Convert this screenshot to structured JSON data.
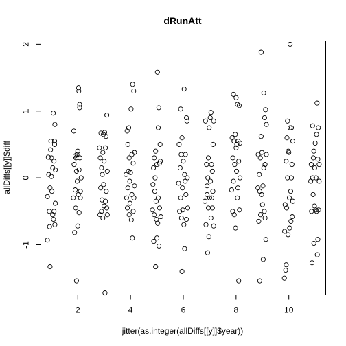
{
  "chart_data": {
    "type": "scatter",
    "title": "dRunAtt",
    "xlabel": "jitter(as.integer(allDiffs[[y]]$year))",
    "ylabel": "allDiffs[[y]]$diff",
    "xlim": [
      0.6,
      11.4
    ],
    "ylim": [
      -1.75,
      2.05
    ],
    "xticks": [
      2,
      4,
      6,
      8,
      10
    ],
    "yticks": [
      -1,
      0,
      1,
      2
    ],
    "grid": false,
    "legend": "none",
    "marker": "open-circle",
    "points": [
      [
        0.85,
        -0.93
      ],
      [
        0.85,
        -0.28
      ],
      [
        0.88,
        0.31
      ],
      [
        0.9,
        0.05
      ],
      [
        0.92,
        -0.5
      ],
      [
        0.93,
        -0.73
      ],
      [
        0.95,
        -1.33
      ],
      [
        0.95,
        -0.15
      ],
      [
        0.97,
        0.42
      ],
      [
        0.98,
        0.55
      ],
      [
        1.0,
        0.3
      ],
      [
        1.0,
        0.02
      ],
      [
        1.02,
        -0.2
      ],
      [
        1.05,
        0.15
      ],
      [
        1.05,
        -0.55
      ],
      [
        1.07,
        0.97
      ],
      [
        1.08,
        -0.62
      ],
      [
        1.1,
        0.25
      ],
      [
        1.1,
        -0.5
      ],
      [
        1.12,
        0.55
      ],
      [
        1.13,
        0.8
      ],
      [
        1.13,
        -0.7
      ],
      [
        1.15,
        0.12
      ],
      [
        1.15,
        -0.38
      ],
      [
        1.12,
        0.5
      ],
      [
        1.83,
        -0.3
      ],
      [
        1.85,
        0.7
      ],
      [
        1.86,
        0.2
      ],
      [
        1.88,
        -0.82
      ],
      [
        1.9,
        0.33
      ],
      [
        1.9,
        -0.18
      ],
      [
        1.92,
        -0.45
      ],
      [
        1.93,
        0.3
      ],
      [
        1.95,
        -1.54
      ],
      [
        1.95,
        0.1
      ],
      [
        1.97,
        0.35
      ],
      [
        1.98,
        -0.05
      ],
      [
        2.0,
        0.4
      ],
      [
        2.0,
        -0.72
      ],
      [
        2.02,
        -0.25
      ],
      [
        2.03,
        1.35
      ],
      [
        2.04,
        1.3
      ],
      [
        2.05,
        0.12
      ],
      [
        2.05,
        -0.52
      ],
      [
        2.07,
        1.1
      ],
      [
        2.07,
        1.05
      ],
      [
        2.08,
        0.3
      ],
      [
        2.1,
        -0.3
      ],
      [
        2.1,
        -0.2
      ],
      [
        2.13,
        0.0
      ],
      [
        2.82,
        0.45
      ],
      [
        2.84,
        -0.55
      ],
      [
        2.85,
        0.3
      ],
      [
        2.87,
        -0.15
      ],
      [
        2.88,
        0.67
      ],
      [
        2.9,
        0.15
      ],
      [
        2.9,
        -0.5
      ],
      [
        2.92,
        -0.33
      ],
      [
        2.93,
        0.05
      ],
      [
        2.95,
        0.38
      ],
      [
        2.95,
        -0.6
      ],
      [
        2.97,
        0.65
      ],
      [
        2.98,
        -0.1
      ],
      [
        3.0,
        0.25
      ],
      [
        3.0,
        -0.42
      ],
      [
        3.02,
        0.68
      ],
      [
        3.03,
        -1.72
      ],
      [
        3.05,
        0.45
      ],
      [
        3.05,
        -0.35
      ],
      [
        3.07,
        0.62
      ],
      [
        3.08,
        -0.2
      ],
      [
        3.1,
        0.94
      ],
      [
        3.1,
        -0.45
      ],
      [
        3.12,
        0.1
      ],
      [
        3.12,
        -0.55
      ],
      [
        3.83,
        0.05
      ],
      [
        3.85,
        -0.3
      ],
      [
        3.87,
        0.7
      ],
      [
        3.88,
        -0.45
      ],
      [
        3.9,
        0.5
      ],
      [
        3.9,
        -0.15
      ],
      [
        3.92,
        0.1
      ],
      [
        3.93,
        0.75
      ],
      [
        3.95,
        -0.55
      ],
      [
        3.95,
        0.3
      ],
      [
        3.97,
        -0.05
      ],
      [
        3.98,
        -0.38
      ],
      [
        4.0,
        0.08
      ],
      [
        4.02,
        1.03
      ],
      [
        4.03,
        -0.63
      ],
      [
        4.05,
        -0.25
      ],
      [
        4.05,
        0.35
      ],
      [
        4.07,
        -0.9
      ],
      [
        4.08,
        1.4
      ],
      [
        4.1,
        -0.5
      ],
      [
        4.1,
        0.22
      ],
      [
        4.12,
        1.3
      ],
      [
        4.13,
        -0.3
      ],
      [
        4.15,
        0.38
      ],
      [
        4.15,
        -0.12
      ],
      [
        4.83,
        -0.48
      ],
      [
        4.85,
        -0.1
      ],
      [
        4.87,
        0.15
      ],
      [
        4.88,
        -0.95
      ],
      [
        4.9,
        0.3
      ],
      [
        4.9,
        -0.55
      ],
      [
        4.92,
        -0.2
      ],
      [
        4.93,
        0.0
      ],
      [
        4.95,
        -1.33
      ],
      [
        4.95,
        0.4
      ],
      [
        4.97,
        -0.35
      ],
      [
        4.98,
        -0.62
      ],
      [
        5.0,
        -0.9
      ],
      [
        5.0,
        0.2
      ],
      [
        5.02,
        1.58
      ],
      [
        5.03,
        -0.68
      ],
      [
        5.05,
        0.75
      ],
      [
        5.05,
        -0.3
      ],
      [
        5.07,
        1.05
      ],
      [
        5.08,
        -1.02
      ],
      [
        5.1,
        0.22
      ],
      [
        5.1,
        -0.45
      ],
      [
        5.12,
        0.5
      ],
      [
        5.13,
        0.25
      ],
      [
        5.15,
        -0.58
      ],
      [
        5.82,
        -0.08
      ],
      [
        5.84,
        0.5
      ],
      [
        5.86,
        -0.5
      ],
      [
        5.88,
        0.15
      ],
      [
        5.9,
        1.03
      ],
      [
        5.9,
        -0.3
      ],
      [
        5.92,
        0.35
      ],
      [
        5.93,
        -0.6
      ],
      [
        5.95,
        -1.4
      ],
      [
        5.95,
        0.6
      ],
      [
        5.97,
        -0.15
      ],
      [
        5.98,
        -0.48
      ],
      [
        6.0,
        0.25
      ],
      [
        6.02,
        -0.7
      ],
      [
        6.03,
        1.33
      ],
      [
        6.05,
        -1.06
      ],
      [
        6.05,
        0.05
      ],
      [
        6.07,
        -0.05
      ],
      [
        6.08,
        0.35
      ],
      [
        6.1,
        -0.25
      ],
      [
        6.12,
        0.9
      ],
      [
        6.12,
        -0.62
      ],
      [
        6.14,
        0.85
      ],
      [
        6.15,
        0.0
      ],
      [
        6.17,
        -0.45
      ],
      [
        6.82,
        -0.35
      ],
      [
        6.84,
        0.85
      ],
      [
        6.86,
        -0.7
      ],
      [
        6.88,
        0.2
      ],
      [
        6.9,
        -0.12
      ],
      [
        6.9,
        -0.25
      ],
      [
        6.92,
        -1.12
      ],
      [
        6.93,
        0.0
      ],
      [
        6.95,
        0.3
      ],
      [
        6.95,
        -0.45
      ],
      [
        6.97,
        -0.88
      ],
      [
        6.98,
        0.75
      ],
      [
        7.0,
        -0.3
      ],
      [
        7.02,
        0.9
      ],
      [
        7.03,
        -0.05
      ],
      [
        7.05,
        0.98
      ],
      [
        7.05,
        -0.6
      ],
      [
        7.07,
        0.2
      ],
      [
        7.08,
        -0.3
      ],
      [
        7.1,
        -0.45
      ],
      [
        7.1,
        0.1
      ],
      [
        7.12,
        -0.2
      ],
      [
        7.13,
        0.5
      ],
      [
        7.15,
        0.85
      ],
      [
        7.15,
        -0.72
      ],
      [
        7.83,
        -0.18
      ],
      [
        7.85,
        0.6
      ],
      [
        7.87,
        -0.5
      ],
      [
        7.88,
        0.3
      ],
      [
        7.9,
        1.25
      ],
      [
        7.9,
        -0.05
      ],
      [
        7.92,
        0.55
      ],
      [
        7.93,
        -0.55
      ],
      [
        7.95,
        0.2
      ],
      [
        7.97,
        0.65
      ],
      [
        7.98,
        -0.75
      ],
      [
        8.0,
        1.2
      ],
      [
        8.0,
        0.45
      ],
      [
        8.02,
        0.1
      ],
      [
        8.03,
        0.5
      ],
      [
        8.05,
        -0.3
      ],
      [
        8.05,
        1.1
      ],
      [
        8.07,
        -0.15
      ],
      [
        8.08,
        0.55
      ],
      [
        8.1,
        -1.54
      ],
      [
        8.1,
        0.25
      ],
      [
        8.12,
        1.08
      ],
      [
        8.13,
        -0.48
      ],
      [
        8.15,
        0.0
      ],
      [
        8.15,
        0.52
      ],
      [
        8.83,
        -0.15
      ],
      [
        8.84,
        0.35
      ],
      [
        8.86,
        -0.65
      ],
      [
        8.88,
        0.05
      ],
      [
        8.9,
        -1.54
      ],
      [
        8.9,
        -0.2
      ],
      [
        8.92,
        0.3
      ],
      [
        8.93,
        -0.55
      ],
      [
        8.95,
        0.62
      ],
      [
        8.95,
        1.88
      ],
      [
        8.97,
        -0.25
      ],
      [
        8.98,
        0.38
      ],
      [
        9.0,
        -0.4
      ],
      [
        9.02,
        -0.12
      ],
      [
        9.03,
        -1.22
      ],
      [
        9.05,
        1.27
      ],
      [
        9.05,
        0.15
      ],
      [
        9.07,
        -0.5
      ],
      [
        9.08,
        0.9
      ],
      [
        9.1,
        -0.6
      ],
      [
        9.1,
        0.2
      ],
      [
        9.12,
        1.02
      ],
      [
        9.13,
        -0.92
      ],
      [
        9.15,
        0.8
      ],
      [
        9.15,
        0.35
      ],
      [
        9.83,
        -1.5
      ],
      [
        9.84,
        -0.8
      ],
      [
        9.86,
        -0.4
      ],
      [
        9.88,
        -1.38
      ],
      [
        9.9,
        -1.3
      ],
      [
        9.9,
        0.25
      ],
      [
        9.92,
        -0.45
      ],
      [
        9.93,
        0.6
      ],
      [
        9.95,
        0.0
      ],
      [
        9.95,
        0.85
      ],
      [
        9.97,
        -0.85
      ],
      [
        9.98,
        0.4
      ],
      [
        10.0,
        0.38
      ],
      [
        10.02,
        -0.3
      ],
      [
        10.03,
        -0.75
      ],
      [
        10.05,
        2.0
      ],
      [
        10.05,
        0.75
      ],
      [
        10.07,
        -0.2
      ],
      [
        10.08,
        -0.65
      ],
      [
        10.1,
        0.75
      ],
      [
        10.1,
        0.0
      ],
      [
        10.12,
        0.2
      ],
      [
        10.13,
        -0.58
      ],
      [
        10.15,
        0.55
      ],
      [
        10.15,
        -0.35
      ],
      [
        10.83,
        -0.05
      ],
      [
        10.85,
        0.2
      ],
      [
        10.86,
        -0.5
      ],
      [
        10.88,
        -1.27
      ],
      [
        10.9,
        0.78
      ],
      [
        10.9,
        0.0
      ],
      [
        10.92,
        -0.25
      ],
      [
        10.93,
        0.3
      ],
      [
        10.95,
        -0.98
      ],
      [
        10.95,
        0.4
      ],
      [
        10.97,
        -0.42
      ],
      [
        10.98,
        0.15
      ],
      [
        11.0,
        0.52
      ],
      [
        11.02,
        -0.48
      ],
      [
        11.03,
        0.0
      ],
      [
        11.05,
        0.65
      ],
      [
        11.05,
        -0.5
      ],
      [
        11.07,
        1.12
      ],
      [
        11.08,
        -1.15
      ],
      [
        11.1,
        0.28
      ],
      [
        11.1,
        -0.92
      ],
      [
        11.12,
        0.75
      ],
      [
        11.13,
        -0.48
      ],
      [
        11.15,
        0.2
      ],
      [
        11.15,
        -0.05
      ]
    ]
  }
}
